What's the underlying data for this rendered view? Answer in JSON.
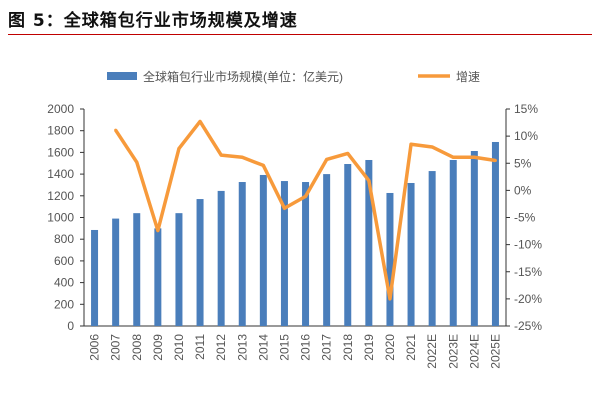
{
  "title": "图 5：全球箱包行业市场规模及增速",
  "chart_data": {
    "type": "bar+line",
    "categories": [
      "2006",
      "2007",
      "2008",
      "2009",
      "2010",
      "2011",
      "2012",
      "2013",
      "2014",
      "2015",
      "2016",
      "2017",
      "2018",
      "2019",
      "2020",
      "2021",
      "2022E",
      "2023E",
      "2024E",
      "2025E"
    ],
    "series": [
      {
        "name": "全球箱包行业市场规模(单位：亿美元)",
        "type": "bar",
        "axis": "left",
        "color": "#4a7ebb",
        "values": [
          885,
          990,
          1040,
          900,
          1040,
          1170,
          1245,
          1327,
          1392,
          1336,
          1327,
          1400,
          1493,
          1530,
          1226,
          1318,
          1428,
          1530,
          1613,
          1696
        ]
      },
      {
        "name": "增速",
        "type": "line",
        "axis": "right",
        "color": "#f79a3b",
        "values": [
          null,
          11.1,
          5.2,
          -7.4,
          7.7,
          12.7,
          6.5,
          6.1,
          4.6,
          -3.3,
          -1.1,
          5.7,
          6.8,
          1.8,
          -20.0,
          8.5,
          8.0,
          6.1,
          6.1,
          5.5
        ]
      }
    ],
    "y_left": {
      "range": [
        0,
        2000
      ],
      "ticks": [
        "0",
        "200",
        "400",
        "600",
        "800",
        "1000",
        "1200",
        "1400",
        "1600",
        "1800",
        "2000"
      ]
    },
    "y_right": {
      "range": [
        -25,
        15
      ],
      "ticks": [
        "-25%",
        "-20%",
        "-15%",
        "-10%",
        "-5%",
        "0%",
        "5%",
        "10%",
        "15%"
      ]
    },
    "legend": "top",
    "grid": false
  }
}
